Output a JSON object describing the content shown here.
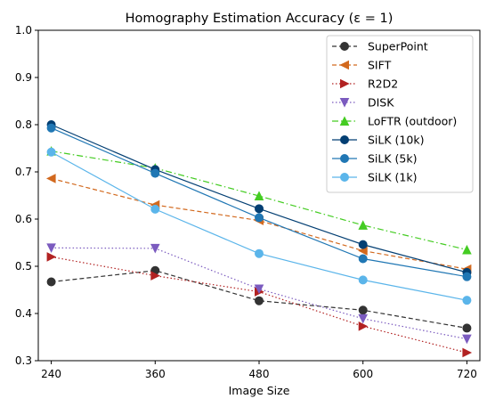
{
  "chart_data": {
    "type": "line",
    "title": "Homography Estimation Accuracy (ε = 1)",
    "xlabel": "Image Size",
    "ylabel": "",
    "x": [
      240,
      360,
      480,
      600,
      720
    ],
    "xlim": [
      225,
      735
    ],
    "ylim": [
      0.3,
      1.0
    ],
    "yticks": [
      0.3,
      0.4,
      0.5,
      0.6,
      0.7,
      0.8,
      0.9,
      1.0
    ],
    "grid": false,
    "legend_position": "upper-right",
    "series": [
      {
        "name": "SuperPoint",
        "values": [
          0.467,
          0.491,
          0.427,
          0.407,
          0.369
        ],
        "color": "#333333",
        "dash": "dashed",
        "marker": "circle"
      },
      {
        "name": "SIFT",
        "values": [
          0.686,
          0.63,
          0.597,
          0.533,
          0.494
        ],
        "color": "#d2691e",
        "dash": "dashed",
        "marker": "triangle-left"
      },
      {
        "name": "R2D2",
        "values": [
          0.52,
          0.48,
          0.446,
          0.373,
          0.317
        ],
        "color": "#b22222",
        "dash": "dotted",
        "marker": "triangle-right"
      },
      {
        "name": "DISK",
        "values": [
          0.539,
          0.538,
          0.452,
          0.389,
          0.346
        ],
        "color": "#7b5bbf",
        "dash": "dotted",
        "marker": "triangle-down"
      },
      {
        "name": "LoFTR (outdoor)",
        "values": [
          0.744,
          0.708,
          0.649,
          0.587,
          0.535
        ],
        "color": "#44cc22",
        "dash": "dashdot",
        "marker": "triangle-up"
      },
      {
        "name": "SiLK (10k)",
        "values": [
          0.8,
          0.705,
          0.622,
          0.546,
          0.487
        ],
        "color": "#033f73",
        "dash": "solid",
        "marker": "circle"
      },
      {
        "name": "SiLK (5k)",
        "values": [
          0.793,
          0.697,
          0.603,
          0.516,
          0.478
        ],
        "color": "#2077b4",
        "dash": "solid",
        "marker": "circle"
      },
      {
        "name": "SiLK (1k)",
        "values": [
          0.742,
          0.621,
          0.527,
          0.471,
          0.428
        ],
        "color": "#5bb5ea",
        "dash": "solid",
        "marker": "circle"
      }
    ]
  }
}
